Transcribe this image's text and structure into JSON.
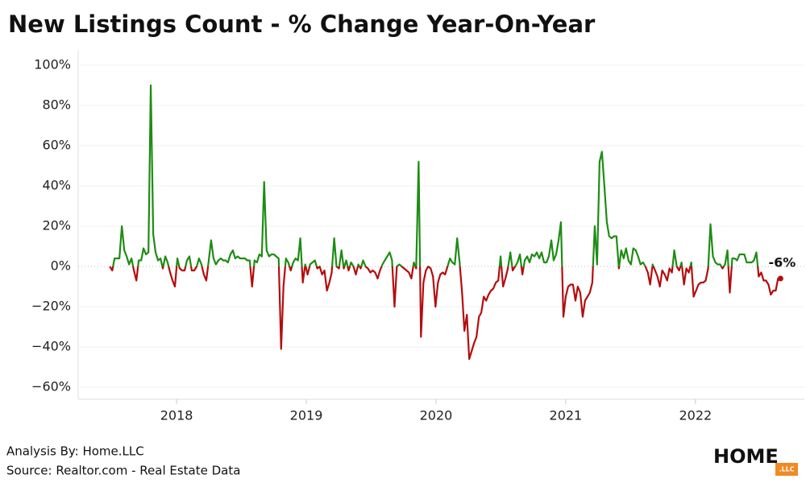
{
  "chart_data": {
    "type": "line",
    "title": "New Listings Count - % Change Year-On-Year",
    "x": [
      2017.485,
      2017.504,
      2017.522,
      2017.541,
      2017.559,
      2017.578,
      2017.597,
      2017.615,
      2017.634,
      2017.652,
      2017.671,
      2017.69,
      2017.708,
      2017.727,
      2017.745,
      2017.764,
      2017.783,
      2017.801,
      2017.82,
      2017.838,
      2017.857,
      2017.876,
      2017.894,
      2017.913,
      2017.931,
      2017.95,
      2017.969,
      2017.987,
      2018.006,
      2018.024,
      2018.043,
      2018.062,
      2018.08,
      2018.099,
      2018.117,
      2018.136,
      2018.155,
      2018.173,
      2018.192,
      2018.21,
      2018.229,
      2018.248,
      2018.266,
      2018.285,
      2018.303,
      2018.322,
      2018.341,
      2018.359,
      2018.378,
      2018.396,
      2018.415,
      2018.434,
      2018.452,
      2018.471,
      2018.489,
      2018.508,
      2018.527,
      2018.545,
      2018.564,
      2018.582,
      2018.601,
      2018.62,
      2018.638,
      2018.657,
      2018.675,
      2018.694,
      2018.713,
      2018.731,
      2018.75,
      2018.768,
      2018.787,
      2018.806,
      2018.824,
      2018.843,
      2018.861,
      2018.88,
      2018.899,
      2018.917,
      2018.936,
      2018.954,
      2018.973,
      2018.992,
      2019.01,
      2019.029,
      2019.047,
      2019.066,
      2019.085,
      2019.103,
      2019.122,
      2019.14,
      2019.159,
      2019.178,
      2019.196,
      2019.215,
      2019.233,
      2019.252,
      2019.271,
      2019.289,
      2019.308,
      2019.326,
      2019.345,
      2019.364,
      2019.382,
      2019.401,
      2019.419,
      2019.438,
      2019.457,
      2019.475,
      2019.494,
      2019.512,
      2019.531,
      2019.55,
      2019.568,
      2019.587,
      2019.605,
      2019.624,
      2019.643,
      2019.661,
      2019.68,
      2019.698,
      2019.717,
      2019.736,
      2019.754,
      2019.773,
      2019.791,
      2019.81,
      2019.829,
      2019.847,
      2019.866,
      2019.884,
      2019.903,
      2019.922,
      2019.94,
      2019.959,
      2019.977,
      2019.996,
      2020.015,
      2020.033,
      2020.052,
      2020.07,
      2020.089,
      2020.108,
      2020.126,
      2020.145,
      2020.163,
      2020.182,
      2020.201,
      2020.219,
      2020.238,
      2020.256,
      2020.275,
      2020.294,
      2020.312,
      2020.331,
      2020.349,
      2020.368,
      2020.387,
      2020.405,
      2020.424,
      2020.442,
      2020.461,
      2020.48,
      2020.498,
      2020.517,
      2020.535,
      2020.554,
      2020.573,
      2020.591,
      2020.61,
      2020.628,
      2020.647,
      2020.666,
      2020.684,
      2020.703,
      2020.721,
      2020.74,
      2020.759,
      2020.777,
      2020.796,
      2020.814,
      2020.833,
      2020.852,
      2020.87,
      2020.889,
      2020.907,
      2020.926,
      2020.945,
      2020.963,
      2020.982,
      2021.0,
      2021.019,
      2021.038,
      2021.056,
      2021.075,
      2021.093,
      2021.112,
      2021.131,
      2021.149,
      2021.168,
      2021.186,
      2021.205,
      2021.224,
      2021.242,
      2021.261,
      2021.279,
      2021.298,
      2021.317,
      2021.335,
      2021.354,
      2021.372,
      2021.391,
      2021.41,
      2021.428,
      2021.447,
      2021.465,
      2021.484,
      2021.503,
      2021.521,
      2021.54,
      2021.558,
      2021.577,
      2021.596,
      2021.614,
      2021.633,
      2021.651,
      2021.67,
      2021.689,
      2021.707,
      2021.726,
      2021.744,
      2021.763,
      2021.782,
      2021.8,
      2021.819,
      2021.837,
      2021.856,
      2021.875,
      2021.893,
      2021.912,
      2021.93,
      2021.949,
      2021.968,
      2021.986,
      2022.005,
      2022.023,
      2022.042,
      2022.061,
      2022.079,
      2022.098,
      2022.116,
      2022.135,
      2022.154,
      2022.172,
      2022.191,
      2022.209,
      2022.228,
      2022.247,
      2022.265,
      2022.284,
      2022.302,
      2022.321,
      2022.34,
      2022.358,
      2022.377,
      2022.395,
      2022.414,
      2022.433,
      2022.451,
      2022.47,
      2022.488,
      2022.507,
      2022.526,
      2022.544,
      2022.563,
      2022.581,
      2022.6,
      2022.619,
      2022.637,
      2022.656
    ],
    "values": [
      0,
      -2,
      4,
      4,
      4,
      20,
      8,
      5,
      1,
      4,
      -2,
      -7,
      3,
      3,
      9,
      6,
      7,
      90,
      16,
      7,
      3,
      4,
      -1,
      5,
      2,
      -3,
      -7,
      -10,
      4,
      -1,
      -2,
      -2,
      3,
      5,
      -2,
      -2,
      0,
      4,
      1,
      -4,
      -7,
      3,
      13,
      4,
      1,
      3,
      4,
      3,
      3,
      2,
      6,
      8,
      4,
      5,
      4,
      4,
      4,
      3,
      3,
      -10,
      3,
      2,
      6,
      5,
      42,
      8,
      5,
      6,
      6,
      5,
      4,
      -41,
      -10,
      4,
      2,
      -2,
      2,
      4,
      3,
      14,
      -8,
      1,
      -4,
      1,
      2,
      3,
      -1,
      0,
      -4,
      -2,
      -12,
      -8,
      -3,
      14,
      0,
      -1,
      8,
      -1,
      3,
      -2,
      2,
      0,
      -4,
      1,
      -1,
      3,
      0,
      -1,
      -3,
      -2,
      -3,
      -6,
      -2,
      1,
      3,
      5,
      7,
      3,
      -20,
      0,
      1,
      0,
      -1,
      -2,
      -3,
      -6,
      2,
      -1,
      52,
      -35,
      -8,
      -2,
      0,
      -1,
      -5,
      -20,
      -8,
      -4,
      -3,
      -4,
      0,
      4,
      2,
      1,
      14,
      2,
      -13,
      -32,
      -24,
      -46,
      -42,
      -38,
      -35,
      -25,
      -23,
      -15,
      -17,
      -14,
      -12,
      -11,
      -8,
      -7,
      5,
      -10,
      -6,
      -1,
      7,
      -2,
      0,
      2,
      6,
      -4,
      3,
      5,
      2,
      6,
      5,
      7,
      4,
      7,
      2,
      2,
      5,
      13,
      3,
      6,
      13,
      22,
      -25,
      -15,
      -10,
      -9,
      -9,
      -17,
      -10,
      -13,
      -25,
      -17,
      -15,
      -13,
      -8,
      20,
      1,
      52,
      57,
      40,
      22,
      15,
      14,
      15,
      15,
      -1,
      8,
      4,
      9,
      3,
      1,
      9,
      8,
      5,
      1,
      2,
      0,
      -3,
      -9,
      1,
      -2,
      -5,
      -10,
      -2,
      -4,
      -7,
      -1,
      -3,
      8,
      0,
      -2,
      2,
      -9,
      -1,
      -3,
      2,
      -15,
      -12,
      -9,
      -8,
      -8,
      -7,
      -1,
      21,
      5,
      2,
      1,
      1,
      -1,
      1,
      8,
      -13,
      4,
      4,
      3,
      6,
      6,
      6,
      2,
      2,
      2,
      3,
      7,
      -5,
      -3,
      -7,
      -7,
      -9,
      -14,
      -12,
      -12,
      -6,
      -6
    ],
    "end_label": "-6%",
    "positive_color": "#1e8c14",
    "negative_color": "#b40d0d",
    "xlim": [
      2017.26,
      2022.84
    ],
    "xticks": [
      2018,
      2019,
      2020,
      2021,
      2022
    ],
    "ylim": [
      -66,
      104
    ],
    "yticks": [
      {
        "value": -60,
        "label": "−60%"
      },
      {
        "value": -40,
        "label": "−40%"
      },
      {
        "value": -20,
        "label": "−20%"
      },
      {
        "value": 0,
        "label": "0%"
      },
      {
        "value": 20,
        "label": "20%"
      },
      {
        "value": 40,
        "label": "40%"
      },
      {
        "value": 60,
        "label": "60%"
      },
      {
        "value": 80,
        "label": "80%"
      },
      {
        "value": 100,
        "label": "100%"
      }
    ],
    "grid": true
  },
  "footer": {
    "analysis": "Analysis By: Home.LLC",
    "source": "Source: Realtor.com - Real Estate Data"
  },
  "logo": {
    "main": "HOME",
    "sub": ".LLC"
  }
}
